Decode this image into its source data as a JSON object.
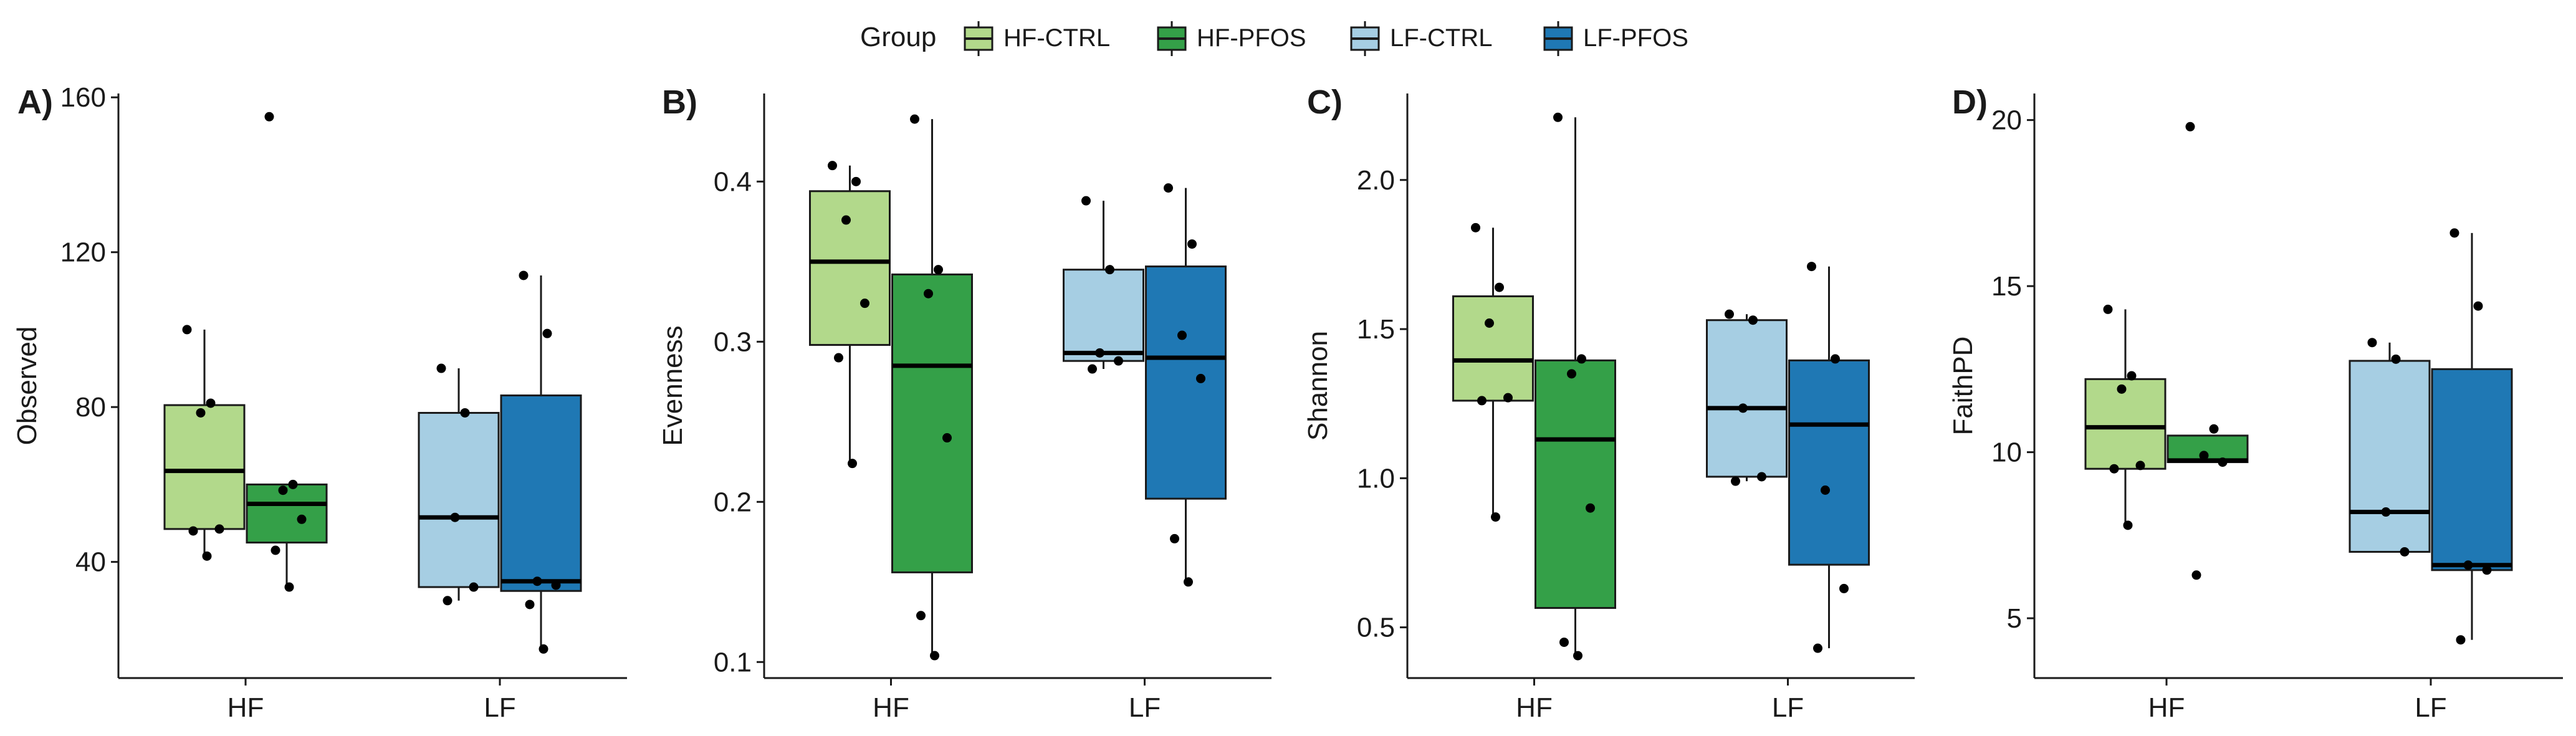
{
  "legend": {
    "title": "Group",
    "entries": [
      {
        "name": "HF-CTRL",
        "color": "#b2d98b"
      },
      {
        "name": "HF-PFOS",
        "color": "#34a048"
      },
      {
        "name": "LF-CTRL",
        "color": "#a6cee3"
      },
      {
        "name": "LF-PFOS",
        "color": "#1f78b4"
      }
    ]
  },
  "chart_data": [
    {
      "type": "box",
      "panel_label": "A)",
      "ylabel": "Observed",
      "xlabel": "",
      "categories": [
        "HF",
        "LF"
      ],
      "ylim": [
        10,
        161
      ],
      "yticks": [
        40,
        80,
        120,
        160
      ],
      "grid": false,
      "legend_position": "top",
      "series": [
        {
          "name": "HF-CTRL",
          "category": "HF",
          "q1": 48.5,
          "median": 63.5,
          "q3": 80.5,
          "whisker_low": 41.5,
          "whisker_high": 100,
          "points": [
            100,
            81,
            78.5,
            48.5,
            48,
            41.5
          ]
        },
        {
          "name": "HF-PFOS",
          "category": "HF",
          "q1": 45,
          "median": 55,
          "q3": 60,
          "whisker_low": 33.5,
          "whisker_high": 60,
          "points": [
            155,
            60,
            58.5,
            51,
            43,
            33.5
          ]
        },
        {
          "name": "LF-CTRL",
          "category": "LF",
          "q1": 33.5,
          "median": 51.5,
          "q3": 78.5,
          "whisker_low": 30,
          "whisker_high": 90,
          "points": [
            90,
            78.5,
            51.5,
            33.5,
            30
          ]
        },
        {
          "name": "LF-PFOS",
          "category": "LF",
          "q1": 32.5,
          "median": 35,
          "q3": 83,
          "whisker_low": 17.5,
          "whisker_high": 114,
          "points": [
            114,
            99,
            35,
            34,
            29,
            17.5
          ]
        }
      ]
    },
    {
      "type": "box",
      "panel_label": "B)",
      "ylabel": "Evenness",
      "xlabel": "",
      "categories": [
        "HF",
        "LF"
      ],
      "ylim": [
        0.09,
        0.455
      ],
      "yticks": [
        0.1,
        0.2,
        0.3,
        0.4
      ],
      "grid": false,
      "series": [
        {
          "name": "HF-CTRL",
          "category": "HF",
          "q1": 0.298,
          "median": 0.35,
          "q3": 0.394,
          "whisker_low": 0.224,
          "whisker_high": 0.41,
          "points": [
            0.41,
            0.4,
            0.376,
            0.324,
            0.29,
            0.224
          ]
        },
        {
          "name": "HF-PFOS",
          "category": "HF",
          "q1": 0.156,
          "median": 0.285,
          "q3": 0.342,
          "whisker_low": 0.104,
          "whisker_high": 0.439,
          "points": [
            0.439,
            0.345,
            0.33,
            0.24,
            0.129,
            0.104
          ]
        },
        {
          "name": "LF-CTRL",
          "category": "LF",
          "q1": 0.288,
          "median": 0.293,
          "q3": 0.345,
          "whisker_low": 0.283,
          "whisker_high": 0.388,
          "points": [
            0.388,
            0.345,
            0.293,
            0.288,
            0.283
          ]
        },
        {
          "name": "LF-PFOS",
          "category": "LF",
          "q1": 0.202,
          "median": 0.29,
          "q3": 0.347,
          "whisker_low": 0.15,
          "whisker_high": 0.396,
          "points": [
            0.396,
            0.361,
            0.304,
            0.277,
            0.177,
            0.15
          ]
        }
      ]
    },
    {
      "type": "box",
      "panel_label": "C)",
      "ylabel": "Shannon",
      "xlabel": "",
      "categories": [
        "HF",
        "LF"
      ],
      "ylim": [
        0.33,
        2.29
      ],
      "yticks": [
        0.5,
        1.0,
        1.5,
        2.0
      ],
      "tick_labels": [
        "0.5",
        "1.0",
        "1.5",
        "2.0"
      ],
      "grid": false,
      "series": [
        {
          "name": "HF-CTRL",
          "category": "HF",
          "q1": 1.26,
          "median": 1.395,
          "q3": 1.61,
          "whisker_low": 0.87,
          "whisker_high": 1.84,
          "points": [
            1.84,
            1.64,
            1.52,
            1.27,
            1.26,
            0.87
          ]
        },
        {
          "name": "HF-PFOS",
          "category": "HF",
          "q1": 0.565,
          "median": 1.13,
          "q3": 1.395,
          "whisker_low": 0.405,
          "whisker_high": 2.21,
          "points": [
            2.21,
            1.4,
            1.35,
            0.9,
            0.45,
            0.405
          ]
        },
        {
          "name": "LF-CTRL",
          "category": "LF",
          "q1": 1.005,
          "median": 1.235,
          "q3": 1.53,
          "whisker_low": 0.99,
          "whisker_high": 1.55,
          "points": [
            1.55,
            1.53,
            1.235,
            1.005,
            0.99
          ]
        },
        {
          "name": "LF-PFOS",
          "category": "LF",
          "q1": 0.71,
          "median": 1.18,
          "q3": 1.395,
          "whisker_low": 0.43,
          "whisker_high": 1.71,
          "points": [
            1.71,
            1.4,
            0.96,
            0.63,
            0.43
          ]
        }
      ]
    },
    {
      "type": "box",
      "panel_label": "D)",
      "ylabel": "FaithPD",
      "xlabel": "",
      "categories": [
        "HF",
        "LF"
      ],
      "ylim": [
        3.2,
        20.8
      ],
      "yticks": [
        5,
        10,
        15,
        20
      ],
      "grid": false,
      "series": [
        {
          "name": "HF-CTRL",
          "category": "HF",
          "q1": 9.5,
          "median": 10.75,
          "q3": 12.2,
          "whisker_low": 7.8,
          "whisker_high": 14.3,
          "points": [
            14.3,
            12.3,
            11.9,
            9.6,
            9.5,
            7.8
          ]
        },
        {
          "name": "HF-PFOS",
          "category": "HF",
          "q1": 9.7,
          "median": 9.75,
          "q3": 10.5,
          "whisker_low": 9.7,
          "whisker_high": 10.5,
          "points": [
            19.8,
            10.7,
            9.9,
            9.7,
            6.3
          ]
        },
        {
          "name": "LF-CTRL",
          "category": "LF",
          "q1": 7.0,
          "median": 8.2,
          "q3": 12.75,
          "whisker_low": 7.0,
          "whisker_high": 13.3,
          "points": [
            13.3,
            12.8,
            8.2,
            7.0
          ]
        },
        {
          "name": "LF-PFOS",
          "category": "LF",
          "q1": 6.45,
          "median": 6.6,
          "q3": 12.5,
          "whisker_low": 4.35,
          "whisker_high": 16.6,
          "points": [
            16.6,
            14.4,
            6.6,
            6.45,
            4.35
          ]
        }
      ]
    }
  ]
}
